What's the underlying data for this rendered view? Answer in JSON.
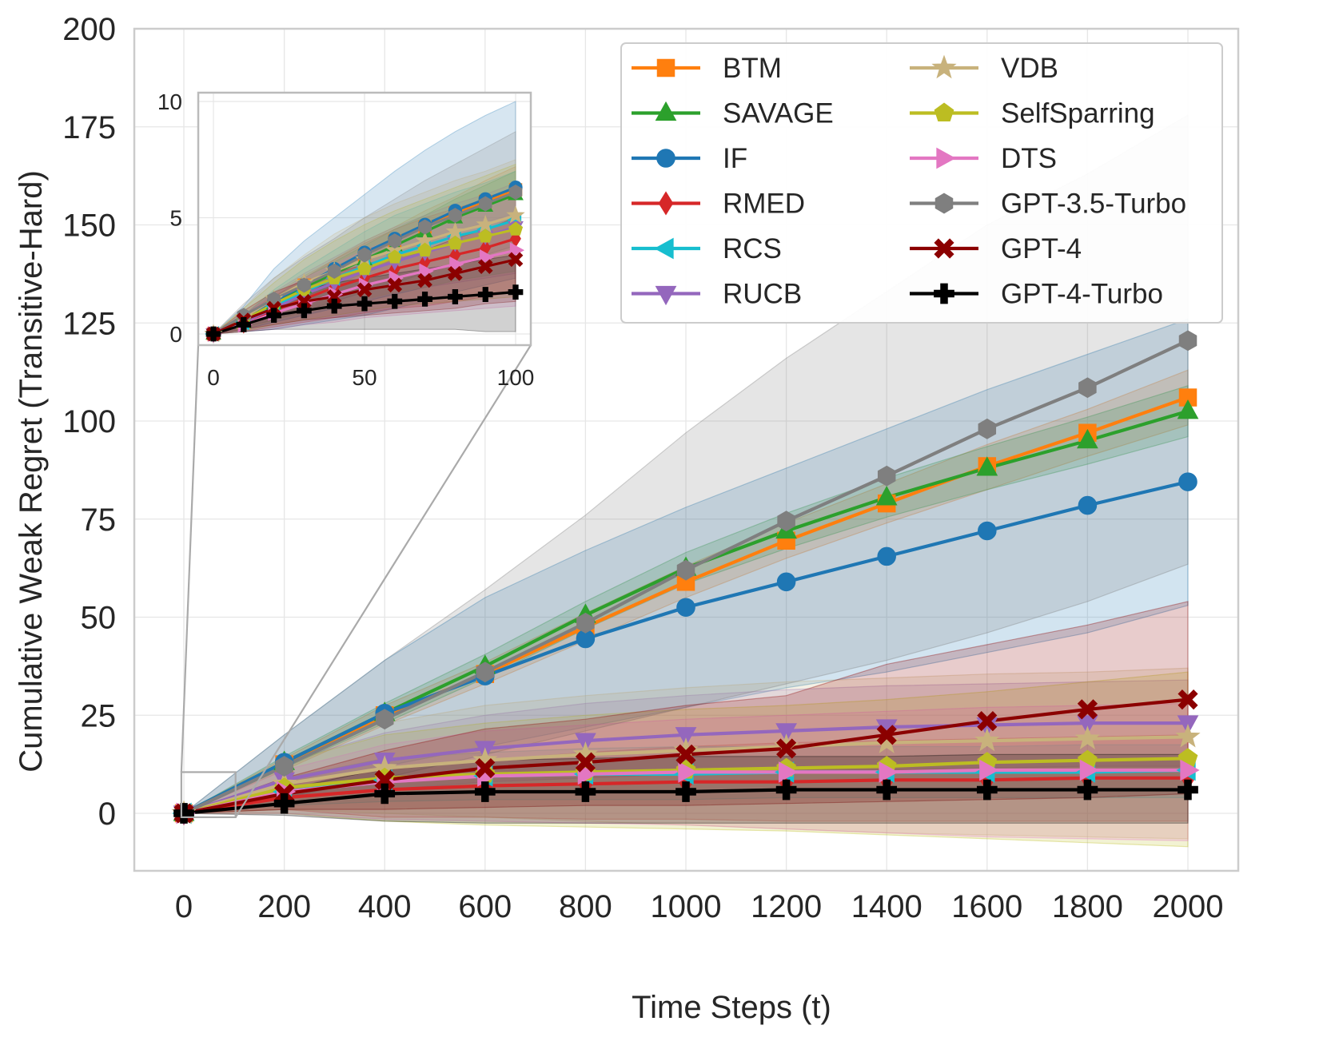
{
  "chart_data": {
    "type": "line",
    "title": "",
    "xlabel": "Time Steps (t)",
    "ylabel": "Cumulative Weak Regret (Transitive-Hard)",
    "xlim": [
      -100,
      2050
    ],
    "ylim": [
      -15,
      200
    ],
    "xticks": [
      "0",
      "200",
      "400",
      "600",
      "800",
      "1000",
      "1200",
      "1400",
      "1600",
      "1800",
      "2000"
    ],
    "yticks": [
      "0",
      "25",
      "50",
      "75",
      "100",
      "125",
      "150",
      "175",
      "200"
    ],
    "grid": true,
    "legend_position": "top-right",
    "legend_columns": 2,
    "colors": {
      "BTM": "#ff7f0e",
      "SAVAGE": "#2ca02c",
      "IF": "#1f77b4",
      "RMED": "#d62728",
      "RCS": "#17becf",
      "RUCB": "#9467bd",
      "VDB": "#c8b27c",
      "SelfSparring": "#bcbd22",
      "DTS": "#e377c2",
      "GPT-3.5-Turbo": "#7f7f7f",
      "GPT-4": "#8b0000",
      "GPT-4-Turbo": "#000000"
    },
    "x": [
      0,
      200,
      400,
      600,
      800,
      1000,
      1200,
      1400,
      1600,
      1800,
      2000
    ],
    "series": [
      {
        "name": "BTM",
        "marker": "square",
        "values": [
          0,
          12.5,
          25,
          35.5,
          47.5,
          59,
          69.5,
          79,
          88.5,
          97,
          106
        ],
        "band_lower": [
          0,
          11,
          22.5,
          33,
          44,
          55,
          65,
          74,
          82.5,
          91,
          99
        ],
        "band_upper": [
          0,
          14,
          27.5,
          38.5,
          51,
          63,
          74,
          84,
          94,
          103,
          113
        ]
      },
      {
        "name": "SAVAGE",
        "marker": "triangle-up",
        "values": [
          0,
          13,
          25.5,
          37.5,
          50.5,
          62.5,
          72,
          80.5,
          88,
          95,
          102.5
        ],
        "band_lower": [
          0,
          11.5,
          23,
          34.5,
          47,
          58.5,
          67.5,
          75.5,
          82.5,
          89,
          96
        ],
        "band_upper": [
          0,
          14.5,
          28,
          40.5,
          54,
          66.5,
          76.5,
          85.5,
          93.5,
          101,
          109
        ]
      },
      {
        "name": "IF",
        "marker": "circle",
        "values": [
          0,
          13,
          25.5,
          35,
          44.5,
          52.5,
          59,
          65.5,
          72,
          78.5,
          84.5
        ],
        "band_lower": [
          0,
          6,
          12,
          17,
          22,
          27,
          32,
          36,
          41,
          46,
          53
        ],
        "band_upper": [
          0,
          20,
          39,
          55,
          67,
          78,
          88,
          98,
          108,
          117,
          126
        ]
      },
      {
        "name": "RMED",
        "marker": "diamond",
        "values": [
          0,
          4,
          6,
          7,
          7.5,
          8,
          8,
          8.5,
          8.5,
          9,
          9
        ],
        "band_lower": [
          0,
          1,
          -1,
          -1,
          -1.5,
          -1.5,
          -2,
          -2,
          -2,
          -2,
          -2
        ],
        "band_upper": [
          0,
          7,
          11,
          13.5,
          15.5,
          17,
          18,
          18.5,
          19,
          19.5,
          20
        ]
      },
      {
        "name": "RCS",
        "marker": "triangle-left",
        "values": [
          0,
          5.5,
          8.5,
          9.5,
          10,
          10,
          10.5,
          10.5,
          10.5,
          10.5,
          11
        ],
        "band_lower": [
          0,
          2,
          3,
          3.5,
          3.5,
          3.5,
          4,
          4,
          4,
          4,
          4
        ],
        "band_upper": [
          0,
          9,
          14,
          15.5,
          16.5,
          17,
          17,
          17,
          17,
          17.5,
          17.5
        ]
      },
      {
        "name": "RUCB",
        "marker": "triangle-down",
        "values": [
          0,
          8.5,
          13.5,
          16.5,
          18.5,
          20,
          21,
          22,
          22.5,
          23,
          23
        ],
        "band_lower": [
          0,
          4,
          6,
          8,
          9,
          10,
          10.5,
          11,
          11.5,
          12,
          12
        ],
        "band_upper": [
          0,
          13,
          20.5,
          25,
          28,
          30,
          31.5,
          32.5,
          33,
          33.5,
          34
        ]
      },
      {
        "name": "VDB",
        "marker": "star",
        "values": [
          0,
          7.5,
          11.5,
          13.5,
          15,
          16,
          17,
          18,
          18.5,
          19,
          19.5
        ],
        "band_lower": [
          0,
          1,
          0,
          -1,
          -2,
          -3,
          -4,
          -5,
          -5.5,
          -6,
          -6.5
        ],
        "band_upper": [
          0,
          14,
          23,
          27.5,
          30,
          32,
          33.5,
          34.5,
          35.5,
          36,
          37
        ]
      },
      {
        "name": "SelfSparring",
        "marker": "pentagon",
        "values": [
          0,
          6.5,
          9,
          10,
          10.5,
          11,
          11.5,
          12,
          13,
          13.5,
          14
        ],
        "band_lower": [
          0,
          0,
          -2,
          -3,
          -3.5,
          -4,
          -4.5,
          -5.5,
          -6.5,
          -7.5,
          -8.5
        ],
        "band_upper": [
          0,
          13,
          20,
          23,
          25,
          26.5,
          27.5,
          29,
          31,
          33.5,
          36
        ]
      },
      {
        "name": "DTS",
        "marker": "triangle-right",
        "values": [
          0,
          5.5,
          8,
          9.5,
          10,
          10.5,
          10.5,
          10.5,
          11,
          11,
          11
        ],
        "band_lower": [
          0,
          0,
          -1.5,
          -2,
          -2.5,
          -3,
          -4,
          -5,
          -6,
          -6.5,
          -7
        ],
        "band_upper": [
          0,
          11,
          17.5,
          21,
          22.5,
          24,
          25,
          26,
          27,
          27.5,
          28
        ]
      },
      {
        "name": "GPT-3.5-Turbo",
        "marker": "hexagon",
        "values": [
          0,
          12,
          24,
          36,
          48.5,
          62,
          74.5,
          86,
          98,
          108.5,
          120.5
        ],
        "band_lower": [
          0,
          4,
          9,
          15,
          21,
          27,
          33,
          39,
          46,
          54,
          63.5
        ],
        "band_upper": [
          0,
          20,
          39,
          57,
          76,
          97,
          116,
          133,
          150,
          163,
          178
        ]
      },
      {
        "name": "GPT-4",
        "marker": "x",
        "values": [
          0,
          5,
          8.5,
          11.5,
          13,
          15,
          16.5,
          20,
          23.5,
          26.5,
          29
        ],
        "band_lower": [
          0,
          1,
          1,
          1.5,
          2,
          2,
          2.5,
          3,
          3.5,
          4,
          5
        ],
        "band_upper": [
          0,
          9,
          16,
          21.5,
          24,
          27.5,
          30,
          38,
          43,
          48,
          54
        ]
      },
      {
        "name": "GPT-4-Turbo",
        "marker": "plus",
        "values": [
          0,
          2.5,
          5,
          5.5,
          5.5,
          5.5,
          6,
          6,
          6,
          6,
          6
        ],
        "band_lower": [
          0,
          -0.5,
          -2,
          -2.5,
          -2.5,
          -2.5,
          -2.5,
          -2.5,
          -2.5,
          -2.5,
          -2.5
        ],
        "band_upper": [
          0,
          6,
          11.5,
          13.5,
          14,
          14.5,
          14.5,
          14.5,
          15,
          15,
          15
        ]
      }
    ],
    "inset": {
      "xlim": [
        -5,
        103
      ],
      "ylim": [
        -0.5,
        10
      ],
      "xticks": [
        "0",
        "50",
        "100"
      ],
      "yticks": [
        "0",
        "5",
        "10"
      ],
      "x": [
        0,
        10,
        20,
        30,
        40,
        50,
        60,
        70,
        80,
        90,
        100
      ],
      "series": [
        {
          "name": "BTM",
          "values": [
            0,
            0.5,
            1.4,
            2.1,
            2.7,
            3.4,
            4.0,
            4.6,
            5.2,
            5.7,
            6.2
          ],
          "band_lower": [
            0,
            0.4,
            1.1,
            1.7,
            2.2,
            2.8,
            3.4,
            3.9,
            4.4,
            4.8,
            5.2
          ],
          "band_upper": [
            0,
            0.7,
            1.7,
            2.5,
            3.2,
            4.0,
            4.6,
            5.3,
            5.9,
            6.6,
            7.2
          ]
        },
        {
          "name": "SAVAGE",
          "values": [
            0,
            0.5,
            1.3,
            2.0,
            2.6,
            3.2,
            3.8,
            4.4,
            5.0,
            5.5,
            6.0
          ],
          "band_lower": [
            0,
            0.4,
            1.0,
            1.6,
            2.1,
            2.6,
            3.1,
            3.6,
            4.1,
            4.6,
            5.0
          ],
          "band_upper": [
            0,
            0.6,
            1.6,
            2.4,
            3.1,
            3.8,
            4.5,
            5.1,
            5.8,
            6.4,
            7.0
          ]
        },
        {
          "name": "IF",
          "values": [
            0,
            0.6,
            1.4,
            2.1,
            2.8,
            3.5,
            4.1,
            4.7,
            5.3,
            5.8,
            6.3
          ],
          "band_lower": [
            0,
            0.1,
            0.2,
            0.4,
            0.6,
            0.8,
            1.1,
            1.4,
            1.8,
            2.1,
            2.4
          ],
          "band_upper": [
            0,
            1.2,
            2.8,
            4.0,
            5.0,
            6.0,
            7.0,
            7.9,
            8.7,
            9.4,
            10.0
          ]
        },
        {
          "name": "RMED",
          "values": [
            0,
            0.4,
            1.0,
            1.5,
            2.0,
            2.4,
            2.8,
            3.1,
            3.4,
            3.7,
            4.1
          ],
          "band_lower": [
            0,
            0.1,
            0.3,
            0.5,
            0.7,
            0.9,
            1.1,
            1.2,
            1.4,
            1.6,
            1.8
          ],
          "band_upper": [
            0,
            0.7,
            1.6,
            2.4,
            3.2,
            3.9,
            4.5,
            5.0,
            5.4,
            5.8,
            6.3
          ]
        },
        {
          "name": "RCS",
          "values": [
            0,
            0.5,
            1.2,
            1.8,
            2.4,
            2.9,
            3.4,
            3.8,
            4.2,
            4.5,
            4.9
          ],
          "band_lower": [
            0,
            0.2,
            0.5,
            0.8,
            1.1,
            1.4,
            1.7,
            2.0,
            2.3,
            2.5,
            2.7
          ],
          "band_upper": [
            0,
            0.8,
            1.9,
            2.8,
            3.6,
            4.4,
            5.1,
            5.6,
            6.1,
            6.5,
            7.0
          ]
        },
        {
          "name": "RUCB",
          "values": [
            0,
            0.5,
            1.1,
            1.7,
            2.2,
            2.7,
            3.1,
            3.5,
            3.9,
            4.2,
            4.6
          ],
          "band_lower": [
            0,
            0.2,
            0.5,
            0.8,
            1.1,
            1.4,
            1.7,
            2.0,
            2.2,
            2.4,
            2.6
          ],
          "band_upper": [
            0,
            0.8,
            1.8,
            2.6,
            3.3,
            4.0,
            4.6,
            5.1,
            5.6,
            6.0,
            6.5
          ]
        },
        {
          "name": "VDB",
          "values": [
            0,
            0.7,
            1.5,
            2.2,
            2.7,
            3.2,
            3.6,
            4.0,
            4.4,
            4.7,
            5.1
          ],
          "band_lower": [
            0,
            0.2,
            0.6,
            0.9,
            1.2,
            1.5,
            1.8,
            2.0,
            2.3,
            2.5,
            2.7
          ],
          "band_upper": [
            0,
            1.1,
            2.4,
            3.4,
            4.3,
            5.0,
            5.6,
            6.1,
            6.6,
            7.0,
            7.5
          ]
        },
        {
          "name": "SelfSparring",
          "values": [
            0,
            0.6,
            1.3,
            1.9,
            2.4,
            2.8,
            3.3,
            3.6,
            3.9,
            4.2,
            4.5
          ],
          "band_lower": [
            0,
            0.1,
            0.4,
            0.6,
            0.8,
            1.0,
            1.2,
            1.3,
            1.4,
            1.5,
            1.6
          ],
          "band_upper": [
            0,
            1.1,
            2.2,
            3.2,
            4.0,
            4.7,
            5.3,
            5.8,
            6.3,
            6.8,
            7.3
          ]
        },
        {
          "name": "DTS",
          "values": [
            0,
            0.4,
            0.9,
            1.3,
            1.7,
            2.1,
            2.4,
            2.7,
            3.0,
            3.3,
            3.6
          ],
          "band_lower": [
            0,
            0.1,
            0.2,
            0.4,
            0.5,
            0.7,
            0.8,
            0.9,
            1.0,
            1.1,
            1.2
          ],
          "band_upper": [
            0,
            0.8,
            1.7,
            2.4,
            3.0,
            3.6,
            4.1,
            4.6,
            5.1,
            5.6,
            6.0
          ]
        },
        {
          "name": "GPT-3.5-Turbo",
          "values": [
            0,
            0.8,
            1.5,
            2.1,
            2.7,
            3.4,
            4.0,
            4.6,
            5.1,
            5.6,
            6.1
          ],
          "band_lower": [
            0,
            0.3,
            0.6,
            1.0,
            1.4,
            1.8,
            2.2,
            2.6,
            3.0,
            3.4,
            3.8
          ],
          "band_upper": [
            0,
            1.3,
            2.4,
            3.3,
            4.1,
            5.0,
            5.8,
            6.6,
            7.3,
            8.0,
            8.7
          ]
        },
        {
          "name": "GPT-4",
          "values": [
            0,
            0.6,
            1.1,
            1.4,
            1.6,
            1.9,
            2.1,
            2.3,
            2.6,
            2.9,
            3.2
          ],
          "band_lower": [
            0,
            0.2,
            0.4,
            0.6,
            0.7,
            0.8,
            0.9,
            1.0,
            1.1,
            1.3,
            1.4
          ],
          "band_upper": [
            0,
            1.0,
            1.8,
            2.3,
            2.6,
            3.0,
            3.3,
            3.6,
            4.1,
            4.5,
            5.0
          ]
        },
        {
          "name": "GPT-4-Turbo",
          "values": [
            0,
            0.4,
            0.8,
            1.0,
            1.2,
            1.3,
            1.4,
            1.5,
            1.6,
            1.7,
            1.8
          ],
          "band_lower": [
            0,
            0.1,
            0.2,
            0.2,
            0.2,
            0.2,
            0.2,
            0.2,
            0.2,
            0.1,
            0.1
          ],
          "band_upper": [
            0,
            0.8,
            1.5,
            1.9,
            2.2,
            2.4,
            2.6,
            2.8,
            3.0,
            3.2,
            3.4
          ]
        }
      ]
    }
  }
}
